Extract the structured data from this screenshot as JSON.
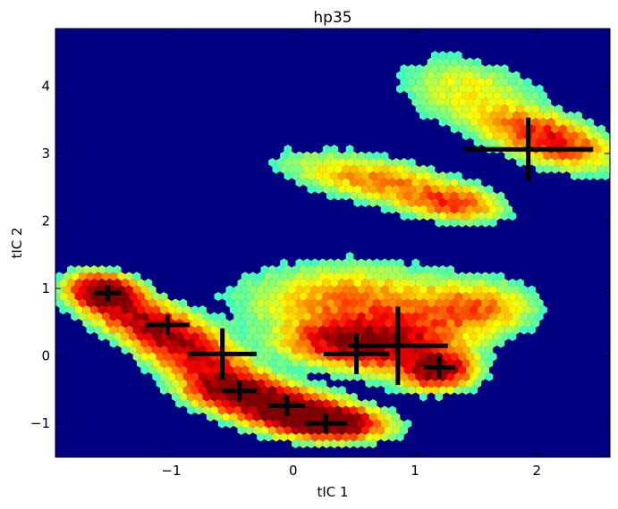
{
  "chart_data": {
    "type": "scatter",
    "title": "hp35",
    "xlabel": "tIC 1",
    "ylabel": "tIC 2",
    "xlim": [
      -1.95,
      2.6
    ],
    "ylim": [
      -1.5,
      4.85
    ],
    "x_ticks": [
      -1,
      0,
      1,
      2
    ],
    "y_ticks": [
      -1,
      0,
      1,
      2,
      3,
      4
    ],
    "x_tick_labels": [
      "−1",
      "0",
      "1",
      "2"
    ],
    "y_tick_labels": [
      "−1",
      "0",
      "1",
      "2",
      "3",
      "4"
    ],
    "grid": false,
    "legend": "none",
    "background_color": "#000080",
    "colormap": "jet",
    "density_clusters": [
      {
        "x": -1.55,
        "y": 0.95,
        "sx": 0.18,
        "sy": 0.15,
        "angle": -35,
        "weight": 1.0
      },
      {
        "x": -1.25,
        "y": 0.55,
        "sx": 0.35,
        "sy": 0.18,
        "angle": -40,
        "weight": 0.65
      },
      {
        "x": -0.85,
        "y": 0.05,
        "sx": 0.35,
        "sy": 0.2,
        "angle": -45,
        "weight": 0.6
      },
      {
        "x": -0.5,
        "y": -0.5,
        "sx": 0.25,
        "sy": 0.18,
        "angle": -20,
        "weight": 0.9
      },
      {
        "x": -0.05,
        "y": -0.78,
        "sx": 0.3,
        "sy": 0.18,
        "angle": -15,
        "weight": 0.95
      },
      {
        "x": 0.3,
        "y": -1.0,
        "sx": 0.28,
        "sy": 0.15,
        "angle": -5,
        "weight": 1.0
      },
      {
        "x": 1.18,
        "y": -0.2,
        "sx": 0.18,
        "sy": 0.18,
        "angle": 0,
        "weight": 0.85
      },
      {
        "x": 0.85,
        "y": 0.2,
        "sx": 0.35,
        "sy": 0.3,
        "angle": 0,
        "weight": 0.55
      },
      {
        "x": 0.45,
        "y": 0.8,
        "sx": 0.55,
        "sy": 0.35,
        "angle": 0,
        "weight": 0.35
      },
      {
        "x": 1.5,
        "y": 0.7,
        "sx": 0.3,
        "sy": 0.25,
        "angle": 0,
        "weight": 0.35
      },
      {
        "x": 0.7,
        "y": 2.6,
        "sx": 0.5,
        "sy": 0.2,
        "angle": -20,
        "weight": 0.35
      },
      {
        "x": 1.3,
        "y": 2.25,
        "sx": 0.25,
        "sy": 0.15,
        "angle": -15,
        "weight": 0.4
      },
      {
        "x": 2.1,
        "y": 3.2,
        "sx": 0.35,
        "sy": 0.2,
        "angle": -35,
        "weight": 0.6
      },
      {
        "x": 1.45,
        "y": 3.9,
        "sx": 0.4,
        "sy": 0.3,
        "angle": -40,
        "weight": 0.22
      },
      {
        "x": 0.4,
        "y": 0.2,
        "sx": 0.3,
        "sy": 0.2,
        "angle": 0,
        "weight": 0.55
      }
    ],
    "centers": [
      {
        "x": -1.52,
        "y": 0.93,
        "xerr": 0.11,
        "yerr": 0.12
      },
      {
        "x": -1.03,
        "y": 0.46,
        "xerr": 0.18,
        "yerr": 0.15
      },
      {
        "x": -0.58,
        "y": 0.03,
        "xerr": 0.28,
        "yerr": 0.38
      },
      {
        "x": -0.44,
        "y": -0.52,
        "xerr": 0.14,
        "yerr": 0.16
      },
      {
        "x": -0.05,
        "y": -0.74,
        "xerr": 0.15,
        "yerr": 0.15
      },
      {
        "x": 0.27,
        "y": -1.0,
        "xerr": 0.17,
        "yerr": 0.14
      },
      {
        "x": 0.52,
        "y": 0.03,
        "xerr": 0.27,
        "yerr": 0.3
      },
      {
        "x": 0.86,
        "y": 0.15,
        "xerr": 0.41,
        "yerr": 0.58
      },
      {
        "x": 1.2,
        "y": -0.17,
        "xerr": 0.13,
        "yerr": 0.17
      },
      {
        "x": 1.93,
        "y": 3.06,
        "xerr": 0.53,
        "yerr": 0.47
      }
    ]
  }
}
